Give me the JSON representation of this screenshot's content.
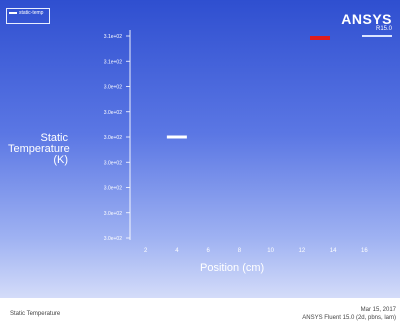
{
  "chart_data": {
    "type": "scatter",
    "title": "",
    "xlabel": "Position (cm)",
    "ylabel": "Static Temperature (K)",
    "x_ticks": [
      "2",
      "4",
      "6",
      "8",
      "10",
      "12",
      "14",
      "16"
    ],
    "y_ticks": [
      "3.1e+02",
      "3.1e+02",
      "3.0e+02",
      "3.0e+02",
      "3.0e+02",
      "3.0e+02",
      "3.0e+02",
      "3.0e+02",
      "3.0e+02"
    ],
    "xlim": [
      1,
      17
    ],
    "ylim": [
      0,
      8
    ],
    "series": [
      {
        "name": "static-temp",
        "color": "#ffffff",
        "x": [
          4
        ],
        "y": [
          4
        ]
      }
    ],
    "legend": {
      "text": "static-temp",
      "position": "top-left"
    },
    "marker_color": "#e01b1b"
  },
  "branding": {
    "brand": "ANSYS",
    "version": "R15.0"
  },
  "footer": {
    "left_text": "Static Temperature",
    "date": "Mar 15, 2017",
    "product": "ANSYS Fluent 15.0 (2d, pbns, lam)"
  }
}
